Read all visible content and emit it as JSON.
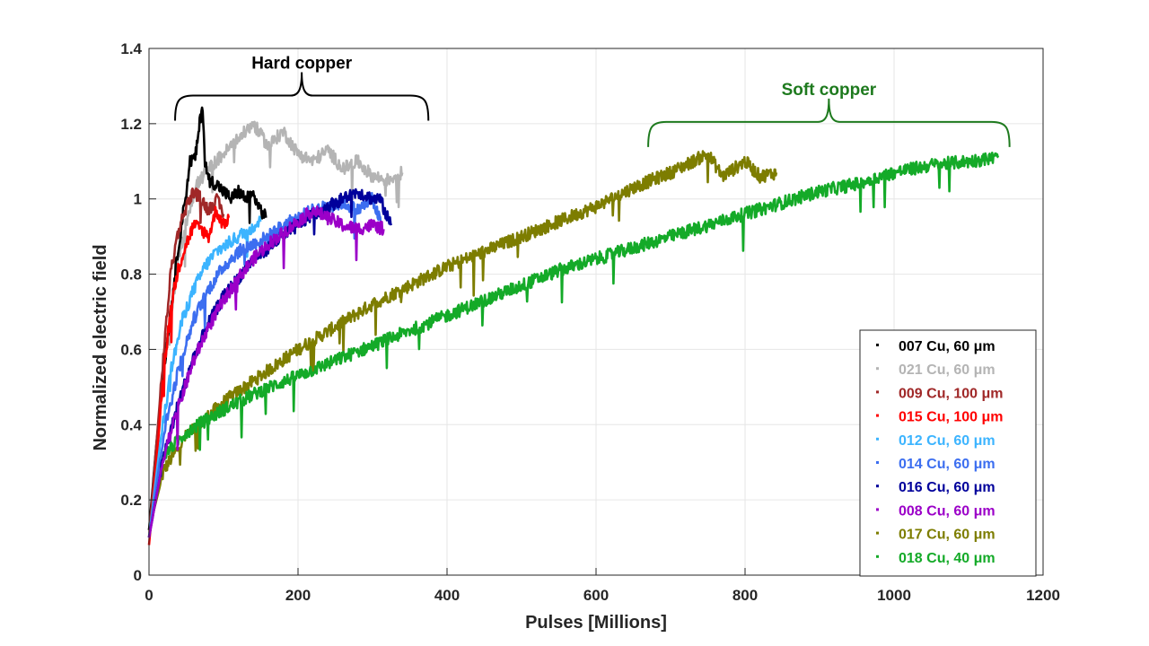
{
  "chart_data": {
    "type": "line",
    "title": "",
    "xlabel": "Pulses [Millions]",
    "ylabel": "Normalized electric field",
    "xlim": [
      0,
      1200
    ],
    "ylim": [
      0,
      1.4
    ],
    "xticks": [
      0,
      200,
      400,
      600,
      800,
      1000,
      1200
    ],
    "xtick_labels": [
      "0",
      "200",
      "400",
      "600",
      "800",
      "1000",
      "1200"
    ],
    "yticks": [
      0,
      0.2,
      0.4,
      0.6,
      0.8,
      1.0,
      1.2,
      1.4
    ],
    "ytick_labels": [
      "0",
      "0.2",
      "0.4",
      "0.6",
      "0.8",
      "1",
      "1.2",
      "1.4"
    ],
    "grid": true,
    "legend_position": "bottom-right",
    "annotations": [
      {
        "text": "Hard copper",
        "x_range": [
          35,
          375
        ],
        "y": 1.27,
        "color": "#000000"
      },
      {
        "text": "Soft copper",
        "x_range": [
          670,
          1155
        ],
        "y": 1.2,
        "color": "#1e7a1e"
      }
    ],
    "series": [
      {
        "name": "007 Cu, 60 μm",
        "color": "#000000",
        "points": [
          [
            0,
            0.12
          ],
          [
            10,
            0.35
          ],
          [
            20,
            0.55
          ],
          [
            30,
            0.72
          ],
          [
            40,
            0.88
          ],
          [
            50,
            1.02
          ],
          [
            55,
            1.1
          ],
          [
            62,
            1.11
          ],
          [
            65,
            1.15
          ],
          [
            68,
            1.2
          ],
          [
            72,
            1.25
          ],
          [
            75,
            1.1
          ],
          [
            80,
            1.05
          ],
          [
            90,
            1.04
          ],
          [
            100,
            1.02
          ],
          [
            110,
            1.0
          ],
          [
            120,
            1.02
          ],
          [
            130,
            1.0
          ],
          [
            140,
            1.01
          ],
          [
            150,
            0.97
          ],
          [
            157,
            0.95
          ]
        ]
      },
      {
        "name": "021 Cu, 60 μm",
        "color": "#b4b4b4",
        "points": [
          [
            0,
            0.12
          ],
          [
            20,
            0.55
          ],
          [
            40,
            0.85
          ],
          [
            55,
            0.98
          ],
          [
            65,
            1.04
          ],
          [
            80,
            1.08
          ],
          [
            100,
            1.12
          ],
          [
            120,
            1.16
          ],
          [
            140,
            1.2
          ],
          [
            160,
            1.14
          ],
          [
            180,
            1.18
          ],
          [
            200,
            1.12
          ],
          [
            220,
            1.1
          ],
          [
            240,
            1.13
          ],
          [
            260,
            1.08
          ],
          [
            280,
            1.1
          ],
          [
            300,
            1.06
          ],
          [
            320,
            1.05
          ],
          [
            340,
            1.07
          ]
        ]
      },
      {
        "name": "009 Cu, 100 μm",
        "color": "#a02828",
        "points": [
          [
            0,
            0.1
          ],
          [
            10,
            0.35
          ],
          [
            20,
            0.6
          ],
          [
            30,
            0.82
          ],
          [
            40,
            0.92
          ],
          [
            50,
            0.98
          ],
          [
            60,
            1.02
          ],
          [
            70,
            1.0
          ],
          [
            80,
            0.97
          ],
          [
            90,
            1.0
          ],
          [
            100,
            0.96
          ]
        ]
      },
      {
        "name": "015 Cu, 100 μm",
        "color": "#ff0000",
        "points": [
          [
            0,
            0.08
          ],
          [
            10,
            0.3
          ],
          [
            20,
            0.55
          ],
          [
            30,
            0.72
          ],
          [
            40,
            0.82
          ],
          [
            50,
            0.88
          ],
          [
            60,
            0.93
          ],
          [
            70,
            0.92
          ],
          [
            80,
            0.9
          ],
          [
            90,
            0.97
          ],
          [
            100,
            0.93
          ],
          [
            107,
            0.95
          ]
        ]
      },
      {
        "name": "012 Cu, 60 μm",
        "color": "#3cb4ff",
        "points": [
          [
            0,
            0.1
          ],
          [
            15,
            0.35
          ],
          [
            30,
            0.55
          ],
          [
            45,
            0.68
          ],
          [
            60,
            0.76
          ],
          [
            75,
            0.82
          ],
          [
            90,
            0.86
          ],
          [
            105,
            0.88
          ],
          [
            120,
            0.9
          ],
          [
            135,
            0.92
          ],
          [
            150,
            0.94
          ]
        ]
      },
      {
        "name": "014 Cu, 60 μm",
        "color": "#3c6ef0",
        "points": [
          [
            0,
            0.1
          ],
          [
            20,
            0.38
          ],
          [
            40,
            0.55
          ],
          [
            60,
            0.68
          ],
          [
            80,
            0.76
          ],
          [
            100,
            0.82
          ],
          [
            120,
            0.86
          ],
          [
            140,
            0.88
          ],
          [
            160,
            0.9
          ],
          [
            180,
            0.93
          ],
          [
            200,
            0.95
          ],
          [
            220,
            0.97
          ],
          [
            240,
            0.98
          ],
          [
            260,
            0.99
          ],
          [
            280,
            0.97
          ],
          [
            300,
            1.0
          ],
          [
            312,
            0.93
          ]
        ]
      },
      {
        "name": "016 Cu, 60 μm",
        "color": "#00009b",
        "points": [
          [
            0,
            0.1
          ],
          [
            20,
            0.32
          ],
          [
            40,
            0.46
          ],
          [
            60,
            0.58
          ],
          [
            80,
            0.67
          ],
          [
            100,
            0.74
          ],
          [
            120,
            0.79
          ],
          [
            140,
            0.84
          ],
          [
            160,
            0.87
          ],
          [
            180,
            0.9
          ],
          [
            200,
            0.93
          ],
          [
            220,
            0.96
          ],
          [
            240,
            0.98
          ],
          [
            260,
            1.0
          ],
          [
            280,
            1.02
          ],
          [
            300,
            1.0
          ],
          [
            310,
            1.0
          ],
          [
            320,
            0.95
          ],
          [
            325,
            0.93
          ]
        ]
      },
      {
        "name": "008 Cu, 60 μm",
        "color": "#9b00c8",
        "points": [
          [
            0,
            0.1
          ],
          [
            20,
            0.32
          ],
          [
            40,
            0.45
          ],
          [
            60,
            0.57
          ],
          [
            80,
            0.66
          ],
          [
            100,
            0.73
          ],
          [
            120,
            0.79
          ],
          [
            140,
            0.84
          ],
          [
            160,
            0.88
          ],
          [
            180,
            0.91
          ],
          [
            200,
            0.94
          ],
          [
            220,
            0.97
          ],
          [
            240,
            0.95
          ],
          [
            260,
            0.93
          ],
          [
            280,
            0.92
          ],
          [
            300,
            0.93
          ],
          [
            315,
            0.92
          ]
        ]
      },
      {
        "name": "017 Cu, 60 μm",
        "color": "#7d7d00",
        "points": [
          [
            0,
            0.12
          ],
          [
            20,
            0.28
          ],
          [
            50,
            0.37
          ],
          [
            100,
            0.46
          ],
          [
            150,
            0.53
          ],
          [
            200,
            0.6
          ],
          [
            250,
            0.66
          ],
          [
            300,
            0.72
          ],
          [
            350,
            0.77
          ],
          [
            400,
            0.82
          ],
          [
            450,
            0.86
          ],
          [
            500,
            0.9
          ],
          [
            550,
            0.94
          ],
          [
            600,
            0.98
          ],
          [
            650,
            1.03
          ],
          [
            700,
            1.07
          ],
          [
            750,
            1.12
          ],
          [
            770,
            1.06
          ],
          [
            800,
            1.1
          ],
          [
            820,
            1.06
          ],
          [
            842,
            1.07
          ]
        ]
      },
      {
        "name": "018 Cu, 40 μm",
        "color": "#14aa28",
        "points": [
          [
            0,
            0.12
          ],
          [
            20,
            0.32
          ],
          [
            50,
            0.38
          ],
          [
            100,
            0.44
          ],
          [
            150,
            0.49
          ],
          [
            200,
            0.53
          ],
          [
            250,
            0.57
          ],
          [
            300,
            0.61
          ],
          [
            350,
            0.65
          ],
          [
            400,
            0.69
          ],
          [
            450,
            0.73
          ],
          [
            500,
            0.77
          ],
          [
            550,
            0.81
          ],
          [
            600,
            0.84
          ],
          [
            650,
            0.87
          ],
          [
            700,
            0.9
          ],
          [
            750,
            0.93
          ],
          [
            800,
            0.96
          ],
          [
            850,
            0.99
          ],
          [
            900,
            1.02
          ],
          [
            950,
            1.04
          ],
          [
            1000,
            1.07
          ],
          [
            1050,
            1.09
          ],
          [
            1100,
            1.1
          ],
          [
            1140,
            1.11
          ]
        ]
      }
    ]
  }
}
